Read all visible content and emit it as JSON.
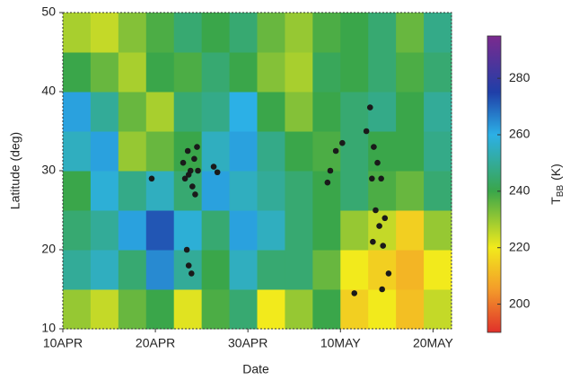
{
  "chart_data": {
    "type": "heatmap",
    "xlabel": "Date",
    "ylabel": "Latitude (deg)",
    "xlim": [
      0,
      42
    ],
    "ylim": [
      10,
      50
    ],
    "xticks": [
      {
        "value": 0,
        "label": "10APR"
      },
      {
        "value": 10,
        "label": "20APR"
      },
      {
        "value": 20,
        "label": "30APR"
      },
      {
        "value": 30,
        "label": "10MAY"
      },
      {
        "value": 40,
        "label": "20MAY"
      }
    ],
    "yticks": [
      10,
      20,
      30,
      40,
      50
    ],
    "x_bins": [
      0,
      3,
      6,
      9,
      12,
      15,
      18,
      21,
      24,
      27,
      30,
      33,
      36,
      39,
      42
    ],
    "y_bins": [
      10,
      15,
      20,
      25,
      30,
      35,
      40,
      45,
      50
    ],
    "z": [
      [
        230,
        225,
        235,
        240,
        222,
        238,
        245,
        220,
        230,
        240,
        215,
        220,
        212,
        225
      ],
      [
        250,
        255,
        245,
        265,
        250,
        240,
        255,
        245,
        245,
        235,
        220,
        215,
        210,
        220
      ],
      [
        245,
        250,
        262,
        272,
        258,
        245,
        262,
        255,
        245,
        240,
        230,
        225,
        215,
        230
      ],
      [
        240,
        258,
        248,
        255,
        245,
        262,
        255,
        250,
        245,
        240,
        245,
        238,
        235,
        245
      ],
      [
        255,
        262,
        230,
        235,
        240,
        255,
        262,
        248,
        240,
        238,
        245,
        240,
        240,
        248
      ],
      [
        262,
        250,
        235,
        228,
        245,
        248,
        260,
        240,
        232,
        240,
        245,
        248,
        240,
        250
      ],
      [
        240,
        235,
        228,
        240,
        238,
        245,
        240,
        232,
        228,
        242,
        240,
        245,
        238,
        245
      ],
      [
        228,
        225,
        232,
        238,
        245,
        240,
        245,
        235,
        230,
        238,
        240,
        245,
        235,
        248
      ]
    ],
    "colorscale": [
      {
        "value": 190,
        "color": "#e0302a"
      },
      {
        "value": 205,
        "color": "#f39a2a"
      },
      {
        "value": 220,
        "color": "#f2ea1c"
      },
      {
        "value": 240,
        "color": "#3aa64a"
      },
      {
        "value": 260,
        "color": "#2cb0e6"
      },
      {
        "value": 275,
        "color": "#1f3fa8"
      },
      {
        "value": 295,
        "color": "#7b2a8e"
      }
    ],
    "colorbar": {
      "label": "T",
      "label_subscript": "BB",
      "label_suffix": "(K)",
      "clim": [
        190,
        295
      ],
      "ticks": [
        200,
        220,
        240,
        260,
        280
      ]
    },
    "points": {
      "color": "#1a1a1a",
      "x": [
        13.0,
        13.2,
        13.5,
        13.8,
        14.0,
        14.3,
        14.5,
        14.2,
        13.6,
        14.6,
        13.4,
        13.6,
        13.9,
        9.6,
        16.3,
        16.7,
        28.6,
        28.9,
        29.5,
        30.2,
        31.5,
        32.8,
        33.2,
        33.6,
        34.0,
        33.4,
        34.4,
        33.8,
        34.2,
        33.5,
        34.6,
        34.8,
        35.2,
        34.5
      ],
      "y": [
        31,
        29,
        32.5,
        30,
        28,
        27,
        33,
        31.5,
        29.5,
        30,
        20,
        18,
        17,
        29,
        30.5,
        29.8,
        28.5,
        30,
        32.5,
        33.5,
        14.5,
        35,
        38,
        33,
        31,
        29,
        29,
        25,
        23,
        21,
        20.5,
        24,
        17,
        15
      ]
    }
  }
}
